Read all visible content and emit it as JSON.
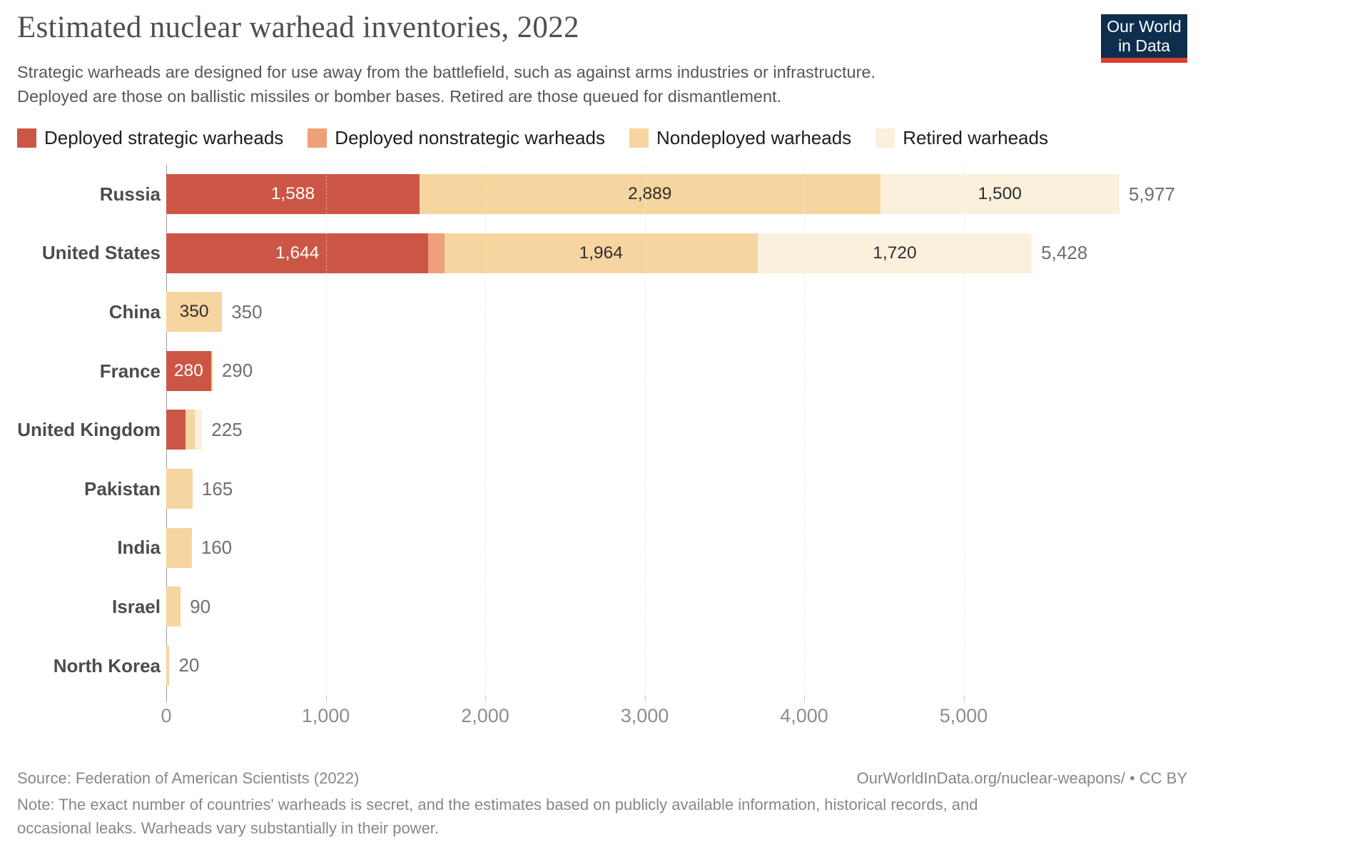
{
  "header": {
    "title": "Estimated nuclear warhead inventories, 2022",
    "subtitle_line1": "Strategic warheads are designed for use away from the battlefield, such as against arms industries or infrastructure.",
    "subtitle_line2": "Deployed are those on ballistic missiles or bomber bases. Retired are those queued for dismantlement.",
    "logo": {
      "line1": "Our World",
      "line2": "in Data",
      "bg_color": "#0d2e4e",
      "accent_color": "#dc3e32"
    }
  },
  "legend": [
    {
      "label": "Deployed strategic warheads",
      "color": "#cc5645"
    },
    {
      "label": "Deployed nonstrategic warheads",
      "color": "#efa07b"
    },
    {
      "label": "Nondeployed warheads",
      "color": "#f6d5a0"
    },
    {
      "label": "Retired warheads",
      "color": "#faf0dc"
    }
  ],
  "chart_data": {
    "type": "bar",
    "orientation": "horizontal",
    "stacked": true,
    "title": "Estimated nuclear warhead inventories, 2022",
    "xlabel": "",
    "ylabel": "",
    "grid": "dashed-vertical",
    "categories": [
      "Russia",
      "United States",
      "China",
      "France",
      "United Kingdom",
      "Pakistan",
      "India",
      "Israel",
      "North Korea"
    ],
    "series": [
      {
        "name": "Deployed strategic warheads",
        "color": "#cc5645",
        "label_color": "#ffffff",
        "values": [
          1588,
          1644,
          0,
          280,
          120,
          0,
          0,
          0,
          0
        ]
      },
      {
        "name": "Deployed nonstrategic warheads",
        "color": "#efa07b",
        "label_color": "#2e2e2e",
        "values": [
          0,
          100,
          0,
          0,
          0,
          0,
          0,
          0,
          0
        ]
      },
      {
        "name": "Nondeployed warheads",
        "color": "#f6d5a0",
        "label_color": "#2e2e2e",
        "values": [
          2889,
          1964,
          350,
          10,
          60,
          165,
          160,
          90,
          20
        ]
      },
      {
        "name": "Retired warheads",
        "color": "#faf0dc",
        "label_color": "#2e2e2e",
        "values": [
          1500,
          1720,
          0,
          0,
          45,
          0,
          0,
          0,
          0
        ]
      }
    ],
    "totals": [
      5977,
      5428,
      350,
      290,
      225,
      165,
      160,
      90,
      20
    ],
    "total_labels": [
      "5,977",
      "5,428",
      "350",
      "290",
      "225",
      "165",
      "160",
      "90",
      "20"
    ],
    "segment_label_min_value": 250,
    "x_tick_values": [
      0,
      1000,
      2000,
      3000,
      4000,
      5000
    ],
    "x_tick_labels": [
      "0",
      "1,000",
      "2,000",
      "3,000",
      "4,000",
      "5,000"
    ],
    "xlim": [
      0,
      6000
    ],
    "legend_position": "top"
  },
  "footer": {
    "source": "Source: Federation of American Scientists (2022)",
    "link": "OurWorldInData.org/nuclear-weapons/ • CC BY",
    "note_line1": "Note: The exact number of countries' warheads is secret, and the estimates based on publicly available information, historical records, and",
    "note_line2": "occasional leaks. Warheads vary substantially in their power."
  }
}
